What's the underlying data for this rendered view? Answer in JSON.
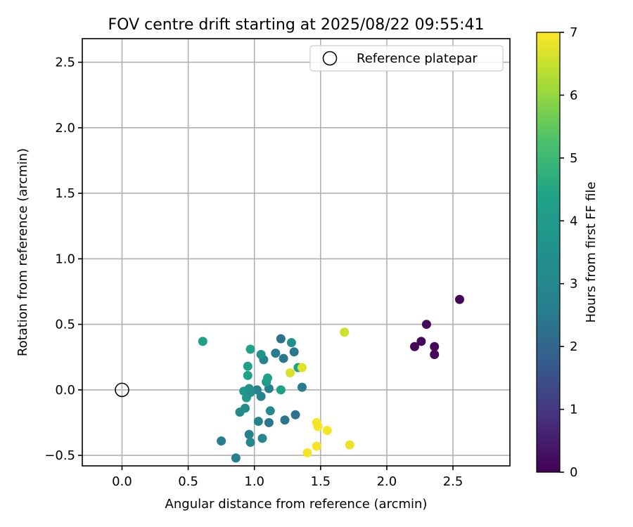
{
  "chart_data": {
    "type": "scatter",
    "title": "FOV centre drift starting at 2025/08/22 09:55:41",
    "xlabel": "Angular distance from reference (arcmin)",
    "ylabel": "Rotation from reference (arcmin)",
    "xlim": [
      -0.3,
      2.93
    ],
    "ylim": [
      -0.58,
      2.68
    ],
    "xticks": [
      0.0,
      0.5,
      1.0,
      1.5,
      2.0,
      2.5
    ],
    "xtick_labels": [
      "0.0",
      "0.5",
      "1.0",
      "1.5",
      "2.0",
      "2.5"
    ],
    "yticks": [
      -0.5,
      0.0,
      0.5,
      1.0,
      1.5,
      2.0,
      2.5
    ],
    "ytick_labels": [
      "−0.5",
      "0.0",
      "0.5",
      "1.0",
      "1.5",
      "2.0",
      "2.5"
    ],
    "grid": true,
    "legend": {
      "position": "top-right",
      "entries": [
        "Reference platepar"
      ]
    },
    "reference_point": {
      "x": 0.0,
      "y": 0.0
    },
    "colorbar": {
      "label": "Hours from first FF file",
      "min": 0,
      "max": 7,
      "ticks": [
        0,
        1,
        2,
        3,
        4,
        5,
        6,
        7
      ],
      "tick_labels": [
        "0",
        "1",
        "2",
        "3",
        "4",
        "5",
        "6",
        "7"
      ],
      "colormap": "viridis"
    },
    "points": [
      {
        "x": 2.55,
        "y": 0.69,
        "c": 0.1
      },
      {
        "x": 2.3,
        "y": 0.5,
        "c": 0.1
      },
      {
        "x": 2.26,
        "y": 0.37,
        "c": 0.1
      },
      {
        "x": 2.21,
        "y": 0.33,
        "c": 0.1
      },
      {
        "x": 2.36,
        "y": 0.33,
        "c": 0.1
      },
      {
        "x": 2.36,
        "y": 0.27,
        "c": 0.1
      },
      {
        "x": 1.2,
        "y": 0.39,
        "c": 2.6
      },
      {
        "x": 1.3,
        "y": 0.29,
        "c": 2.8
      },
      {
        "x": 1.22,
        "y": 0.24,
        "c": 2.8
      },
      {
        "x": 1.16,
        "y": 0.28,
        "c": 2.9
      },
      {
        "x": 1.07,
        "y": 0.23,
        "c": 3.1
      },
      {
        "x": 1.36,
        "y": 0.02,
        "c": 2.9
      },
      {
        "x": 1.23,
        "y": -0.23,
        "c": 2.7
      },
      {
        "x": 1.31,
        "y": -0.19,
        "c": 2.6
      },
      {
        "x": 1.11,
        "y": -0.25,
        "c": 2.8
      },
      {
        "x": 1.03,
        "y": -0.24,
        "c": 3.1
      },
      {
        "x": 1.11,
        "y": 0.01,
        "c": 3.0
      },
      {
        "x": 1.02,
        "y": 0.0,
        "c": 3.1
      },
      {
        "x": 1.05,
        "y": -0.05,
        "c": 3.1
      },
      {
        "x": 1.12,
        "y": -0.16,
        "c": 3.3
      },
      {
        "x": 0.96,
        "y": -0.34,
        "c": 3.1
      },
      {
        "x": 0.97,
        "y": -0.4,
        "c": 3.2
      },
      {
        "x": 1.06,
        "y": -0.37,
        "c": 3.2
      },
      {
        "x": 0.75,
        "y": -0.39,
        "c": 3.0
      },
      {
        "x": 0.86,
        "y": -0.52,
        "c": 3.0
      },
      {
        "x": 0.89,
        "y": -0.17,
        "c": 3.3
      },
      {
        "x": 0.93,
        "y": -0.14,
        "c": 3.4
      },
      {
        "x": 0.96,
        "y": 0.01,
        "c": 3.5
      },
      {
        "x": 0.92,
        "y": -0.01,
        "c": 3.7
      },
      {
        "x": 0.94,
        "y": -0.06,
        "c": 3.8
      },
      {
        "x": 0.95,
        "y": -0.03,
        "c": 3.6
      },
      {
        "x": 0.97,
        "y": -0.02,
        "c": 3.5
      },
      {
        "x": 1.05,
        "y": 0.27,
        "c": 3.6
      },
      {
        "x": 1.28,
        "y": 0.36,
        "c": 3.5
      },
      {
        "x": 1.09,
        "y": 0.06,
        "c": 3.8
      },
      {
        "x": 1.1,
        "y": 0.09,
        "c": 4.0
      },
      {
        "x": 1.2,
        "y": 0.0,
        "c": 4.0
      },
      {
        "x": 1.33,
        "y": 0.17,
        "c": 4.0
      },
      {
        "x": 0.95,
        "y": 0.18,
        "c": 4.0
      },
      {
        "x": 0.95,
        "y": 0.11,
        "c": 4.0
      },
      {
        "x": 0.97,
        "y": 0.31,
        "c": 4.0
      },
      {
        "x": 0.61,
        "y": 0.37,
        "c": 4.0
      },
      {
        "x": 1.36,
        "y": 0.17,
        "c": 6.7
      },
      {
        "x": 1.27,
        "y": 0.13,
        "c": 6.6
      },
      {
        "x": 1.68,
        "y": 0.44,
        "c": 6.5
      },
      {
        "x": 1.47,
        "y": -0.25,
        "c": 6.9
      },
      {
        "x": 1.48,
        "y": -0.28,
        "c": 6.9
      },
      {
        "x": 1.55,
        "y": -0.31,
        "c": 6.9
      },
      {
        "x": 1.47,
        "y": -0.43,
        "c": 6.9
      },
      {
        "x": 1.4,
        "y": -0.48,
        "c": 6.9
      },
      {
        "x": 1.72,
        "y": -0.42,
        "c": 6.8
      }
    ]
  }
}
